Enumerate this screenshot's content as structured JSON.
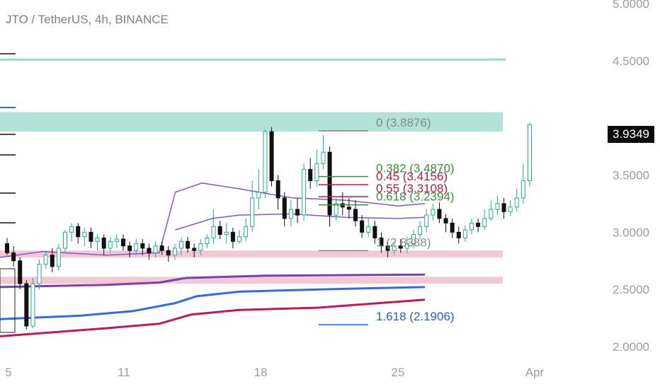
{
  "header": {
    "title": "JTO / TetherUS, 4h, BINANCE"
  },
  "price_badge": "3.9349",
  "colors": {
    "up": "#22ab94",
    "down": "#111111",
    "teal_zone": "#b2e3d8",
    "pink_zone": "#f3c7d3",
    "purple": "#7b3fb0",
    "violet": "#8a54c8",
    "blue": "#2d6ce6",
    "crimson": "#c0185a",
    "fib_gray": "#888888",
    "fib_green": "#388e3c",
    "fib_red": "#b71c3c",
    "fib_blue": "#1e5ee8"
  },
  "chart_data": {
    "type": "candlestick",
    "title": "JTO / TetherUS, 4h, BINANCE",
    "ylim": [
      2.0,
      5.0
    ],
    "y_ticks": [
      "5.0000",
      "4.5000",
      "3.5000",
      "3.0000",
      "2.5000",
      "2.0000"
    ],
    "x_ticks": [
      "5",
      "11",
      "18",
      "25",
      "Apr"
    ],
    "last_price": 3.9349,
    "fib_levels": [
      {
        "label": "0 (3.8876)",
        "value": 3.8876,
        "color": "#888888"
      },
      {
        "label": "0.382 (3.4870)",
        "value": 3.487,
        "color": "#388e3c"
      },
      {
        "label": "0.45 (3.4156)",
        "value": 3.4156,
        "color": "#b71c3c"
      },
      {
        "label": "0.55 (3.3108)",
        "value": 3.3108,
        "color": "#b71c3c"
      },
      {
        "label": "0.618 (3.2394)",
        "value": 3.2394,
        "color": "#388e3c"
      },
      {
        "label": "1 (2.8388)",
        "value": 2.8388,
        "color": "#888888"
      },
      {
        "label": "1.618 (2.1906)",
        "value": 2.1906,
        "color": "#1e5ee8"
      }
    ],
    "zones": [
      {
        "name": "resistance",
        "low": 3.88,
        "high": 4.05,
        "color": "#b2e3d8"
      },
      {
        "name": "support",
        "low": 2.78,
        "high": 2.84,
        "color": "#f3c7d3"
      },
      {
        "name": "support-low",
        "low": 2.55,
        "high": 2.61,
        "color": "#f3c7d3"
      }
    ],
    "hlines": [
      {
        "value": 4.51,
        "color": "#9ad9c8"
      }
    ],
    "moving_averages": [
      {
        "color": "#8a54c8",
        "points": [
          [
            0,
            2.78
          ],
          [
            0.08,
            2.83
          ],
          [
            0.2,
            2.8
          ],
          [
            0.3,
            2.82
          ],
          [
            0.33,
            3.35
          ],
          [
            0.38,
            3.43
          ],
          [
            0.45,
            3.38
          ],
          [
            0.55,
            3.3
          ],
          [
            0.65,
            3.28
          ],
          [
            0.75,
            3.23
          ],
          [
            0.8,
            3.25
          ]
        ]
      },
      {
        "color": "#8a54c8",
        "points": [
          [
            0.33,
            3.02
          ],
          [
            0.4,
            3.12
          ],
          [
            0.45,
            3.15
          ],
          [
            0.55,
            3.16
          ],
          [
            0.65,
            3.13
          ],
          [
            0.75,
            3.12
          ],
          [
            0.8,
            3.13
          ]
        ]
      },
      {
        "color": "#7b3fb0",
        "points": [
          [
            0,
            2.52
          ],
          [
            0.2,
            2.54
          ],
          [
            0.3,
            2.56
          ],
          [
            0.35,
            2.6
          ],
          [
            0.5,
            2.62
          ],
          [
            0.8,
            2.63
          ]
        ]
      },
      {
        "color": "#2d6ce6",
        "points": [
          [
            0,
            2.24
          ],
          [
            0.15,
            2.27
          ],
          [
            0.25,
            2.31
          ],
          [
            0.33,
            2.38
          ],
          [
            0.37,
            2.44
          ],
          [
            0.45,
            2.48
          ],
          [
            0.6,
            2.5
          ],
          [
            0.8,
            2.52
          ]
        ]
      },
      {
        "color": "#c0185a",
        "points": [
          [
            0,
            2.09
          ],
          [
            0.2,
            2.16
          ],
          [
            0.3,
            2.2
          ],
          [
            0.36,
            2.28
          ],
          [
            0.45,
            2.32
          ],
          [
            0.6,
            2.34
          ],
          [
            0.8,
            2.41
          ]
        ]
      }
    ],
    "candles": [
      [
        2.9,
        2.82,
        2.95,
        2.8
      ],
      [
        2.82,
        2.75,
        2.88,
        2.7
      ],
      [
        2.75,
        2.55,
        2.78,
        2.5
      ],
      [
        2.55,
        2.18,
        2.58,
        2.15
      ],
      [
        2.18,
        2.55,
        2.6,
        2.16
      ],
      [
        2.55,
        2.72,
        2.76,
        2.5
      ],
      [
        2.72,
        2.8,
        2.84,
        2.68
      ],
      [
        2.8,
        2.7,
        2.86,
        2.65
      ],
      [
        2.7,
        2.86,
        2.9,
        2.66
      ],
      [
        2.86,
        3.0,
        3.02,
        2.82
      ],
      [
        3.0,
        3.05,
        3.08,
        2.92
      ],
      [
        3.05,
        2.96,
        3.08,
        2.9
      ],
      [
        2.96,
        3.0,
        3.04,
        2.88
      ],
      [
        3.0,
        2.92,
        3.04,
        2.86
      ],
      [
        2.92,
        2.95,
        2.98,
        2.84
      ],
      [
        2.95,
        2.86,
        2.98,
        2.8
      ],
      [
        2.86,
        2.92,
        2.96,
        2.82
      ],
      [
        2.92,
        2.94,
        2.98,
        2.86
      ],
      [
        2.94,
        2.88,
        2.98,
        2.84
      ],
      [
        2.88,
        2.84,
        2.92,
        2.78
      ],
      [
        2.84,
        2.9,
        2.94,
        2.8
      ],
      [
        2.9,
        2.86,
        2.94,
        2.8
      ],
      [
        2.86,
        2.82,
        2.9,
        2.76
      ],
      [
        2.82,
        2.88,
        2.92,
        2.78
      ],
      [
        2.88,
        2.84,
        2.92,
        2.8
      ],
      [
        2.84,
        2.8,
        2.88,
        2.74
      ],
      [
        2.8,
        2.86,
        2.9,
        2.76
      ],
      [
        2.86,
        2.92,
        2.96,
        2.8
      ],
      [
        2.92,
        2.86,
        2.96,
        2.82
      ],
      [
        2.86,
        2.84,
        2.9,
        2.78
      ],
      [
        2.84,
        2.9,
        2.94,
        2.8
      ],
      [
        2.9,
        2.95,
        2.98,
        2.86
      ],
      [
        2.95,
        3.05,
        3.2,
        2.9
      ],
      [
        3.05,
        2.98,
        3.1,
        2.94
      ],
      [
        2.98,
        3.0,
        3.08,
        2.9
      ],
      [
        3.0,
        2.92,
        3.04,
        2.86
      ],
      [
        2.92,
        2.96,
        3.02,
        2.9
      ],
      [
        2.96,
        3.05,
        3.12,
        2.92
      ],
      [
        3.05,
        3.3,
        3.45,
        3.0
      ],
      [
        3.3,
        3.35,
        3.55,
        3.2
      ],
      [
        3.35,
        3.88,
        3.9,
        3.3
      ],
      [
        3.88,
        3.45,
        3.92,
        3.4
      ],
      [
        3.45,
        3.3,
        3.5,
        3.2
      ],
      [
        3.3,
        3.12,
        3.35,
        3.05
      ],
      [
        3.12,
        3.2,
        3.28,
        3.05
      ],
      [
        3.2,
        3.15,
        3.3,
        3.08
      ],
      [
        3.15,
        3.55,
        3.6,
        3.1
      ],
      [
        3.55,
        3.45,
        3.65,
        3.38
      ],
      [
        3.45,
        3.6,
        3.72,
        3.4
      ],
      [
        3.6,
        3.7,
        3.85,
        3.55
      ],
      [
        3.7,
        3.15,
        3.75,
        3.05
      ],
      [
        3.15,
        3.25,
        3.3,
        3.1
      ],
      [
        3.25,
        3.22,
        3.35,
        3.15
      ],
      [
        3.22,
        3.2,
        3.3,
        3.12
      ],
      [
        3.2,
        3.1,
        3.28,
        3.05
      ],
      [
        3.1,
        3.0,
        3.15,
        2.95
      ],
      [
        3.0,
        3.05,
        3.12,
        2.96
      ],
      [
        3.05,
        2.95,
        3.1,
        2.9
      ],
      [
        2.95,
        2.88,
        3.0,
        2.82
      ],
      [
        2.88,
        2.84,
        2.92,
        2.78
      ],
      [
        2.84,
        2.88,
        2.92,
        2.8
      ],
      [
        2.88,
        2.86,
        2.94,
        2.82
      ],
      [
        2.86,
        2.9,
        2.96,
        2.82
      ],
      [
        2.9,
        2.98,
        3.02,
        2.86
      ],
      [
        2.98,
        3.05,
        3.1,
        2.94
      ],
      [
        3.05,
        3.15,
        3.2,
        3.0
      ],
      [
        3.15,
        3.2,
        3.25,
        3.1
      ],
      [
        3.2,
        3.12,
        3.26,
        3.08
      ],
      [
        3.12,
        3.08,
        3.16,
        3.0
      ],
      [
        3.08,
        3.0,
        3.12,
        2.95
      ],
      [
        3.0,
        2.95,
        3.05,
        2.9
      ],
      [
        2.95,
        3.02,
        3.06,
        2.92
      ],
      [
        3.02,
        3.08,
        3.12,
        2.98
      ],
      [
        3.08,
        3.05,
        3.12,
        3.0
      ],
      [
        3.05,
        3.12,
        3.2,
        3.02
      ],
      [
        3.12,
        3.2,
        3.28,
        3.1
      ],
      [
        3.2,
        3.25,
        3.32,
        3.15
      ],
      [
        3.25,
        3.18,
        3.3,
        3.12
      ],
      [
        3.18,
        3.22,
        3.28,
        3.14
      ],
      [
        3.22,
        3.3,
        3.38,
        3.18
      ],
      [
        3.3,
        3.45,
        3.6,
        3.25
      ],
      [
        3.45,
        3.94,
        3.96,
        3.4
      ]
    ]
  }
}
